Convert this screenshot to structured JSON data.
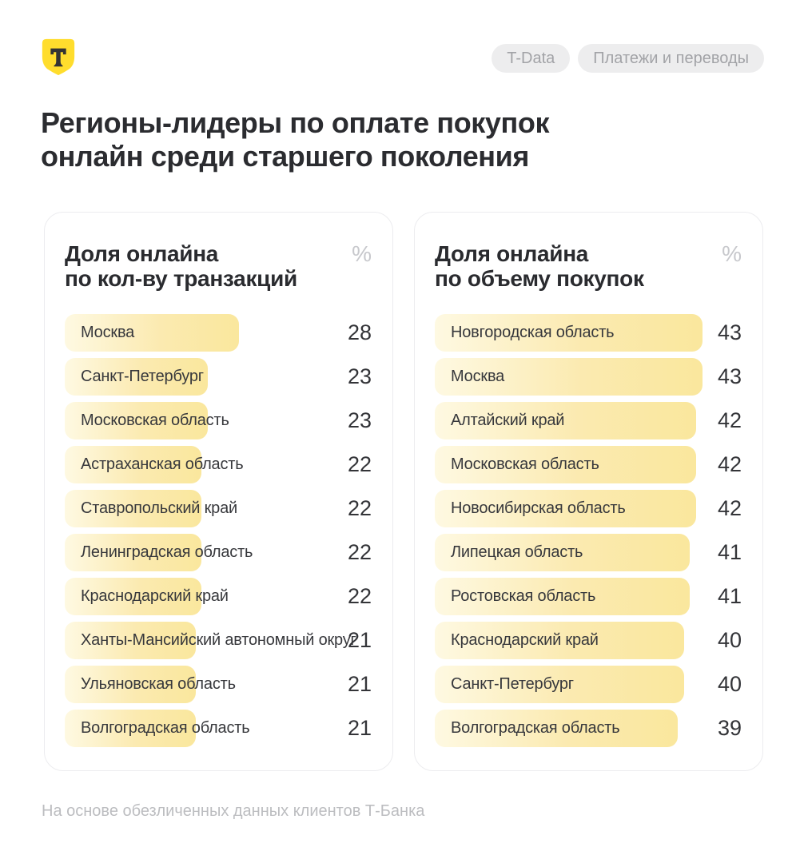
{
  "header": {
    "logo_letter": "Т",
    "badges": [
      {
        "label": "T-Data"
      },
      {
        "label": "Платежи и переводы"
      }
    ]
  },
  "title": {
    "line1": "Регионы-лидеры по оплате покупок",
    "line2": "онлайн среди старшего поколения"
  },
  "panels": [
    {
      "heading_line1": "Доля онлайна",
      "heading_line2": "по кол-ву транзакций",
      "unit": "%"
    },
    {
      "heading_line1": "Доля онлайна",
      "heading_line2": "по объему покупок",
      "unit": "%"
    }
  ],
  "chart_data": [
    {
      "type": "bar",
      "orientation": "horizontal",
      "title": "Доля онлайна по кол-ву транзакций",
      "unit": "%",
      "categories": [
        "Москва",
        "Санкт-Петербург",
        "Московская область",
        "Астраханская область",
        "Ставропольский край",
        "Ленинградская область",
        "Краснодарский край",
        "Ханты-Мансийский автономный округ",
        "Ульяновская область",
        "Волгоградская область"
      ],
      "values": [
        28,
        23,
        23,
        22,
        22,
        22,
        22,
        21,
        21,
        21
      ],
      "value_labels_position": "right",
      "xlim": [
        0,
        45
      ]
    },
    {
      "type": "bar",
      "orientation": "horizontal",
      "title": "Доля онлайна по объему покупок",
      "unit": "%",
      "categories": [
        "Новгородская область",
        "Москва",
        "Алтайский край",
        "Московская область",
        "Новосибирская область",
        "Липецкая область",
        "Ростовская область",
        "Краснодарский край",
        "Санкт-Петербург",
        "Волгоградская область"
      ],
      "values": [
        43,
        43,
        42,
        42,
        42,
        41,
        41,
        40,
        40,
        39
      ],
      "value_labels_position": "right",
      "xlim": [
        0,
        45
      ]
    }
  ],
  "footer": {
    "note": "На основе обезличенных данных клиентов Т-Банка"
  },
  "colors": {
    "brand_yellow": "#FFDD2D",
    "logo_letter": "#333333",
    "bar_gradient_start": "#FEF9E2",
    "bar_gradient_end": "#FAE79D",
    "title_text": "#2B2C30",
    "muted_text": "#A2A3A7",
    "footer_text": "#BCBDC0",
    "panel_border": "#ECECEF"
  }
}
